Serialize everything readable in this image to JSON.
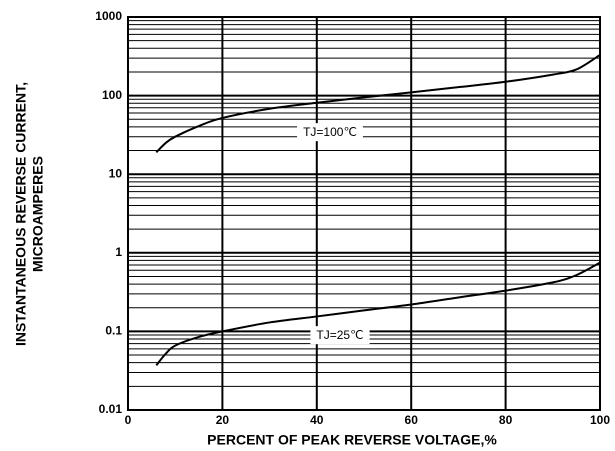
{
  "chart_data": {
    "type": "line",
    "xlabel": "PERCENT OF PEAK REVERSE VOLTAGE,%",
    "ylabel": [
      "INSTANTANEOUS REVERSE CURRENT,",
      "MICROAMPERES"
    ],
    "x": [
      6,
      8,
      10,
      15,
      20,
      30,
      40,
      50,
      60,
      70,
      80,
      90,
      95,
      100
    ],
    "series": [
      {
        "name": "TJ=100℃",
        "color": "#000000",
        "values": [
          19,
          25,
          30,
          41,
          52,
          68,
          81,
          95,
          110,
          128,
          150,
          185,
          215,
          330
        ]
      },
      {
        "name": "TJ=25℃",
        "color": "#000000",
        "values": [
          0.037,
          0.052,
          0.066,
          0.085,
          0.1,
          0.13,
          0.155,
          0.185,
          0.22,
          0.27,
          0.33,
          0.42,
          0.52,
          0.75
        ]
      }
    ],
    "xlim": [
      0,
      100
    ],
    "xticks": [
      0,
      20,
      40,
      60,
      80,
      100
    ],
    "ylim": [
      0.01,
      1000
    ],
    "yticks": [
      0.01,
      0.1,
      1,
      10,
      100,
      1000
    ],
    "ylog": true,
    "grid": true
  }
}
